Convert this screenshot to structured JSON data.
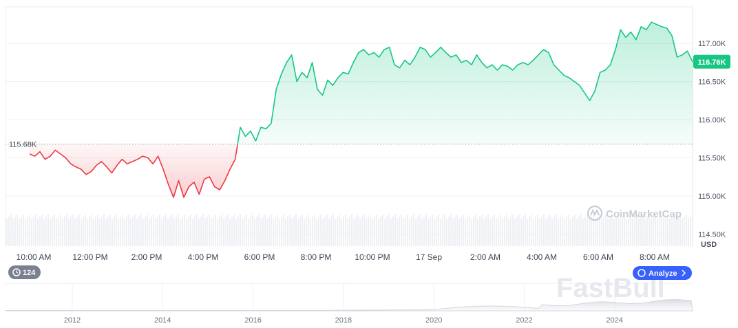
{
  "chart_data": {
    "type": "line",
    "series": [
      {
        "values": [
          115.55,
          115.52,
          115.58,
          115.48,
          115.52,
          115.6,
          115.55,
          115.5,
          115.42,
          115.38,
          115.35,
          115.28,
          115.32,
          115.4,
          115.45,
          115.38,
          115.3,
          115.4,
          115.48,
          115.42,
          115.45,
          115.48,
          115.52,
          115.5,
          115.42,
          115.52,
          115.35,
          115.15,
          114.98,
          115.2,
          114.98,
          115.12,
          115.18,
          115.02,
          115.22,
          115.25,
          115.12,
          115.08,
          115.2,
          115.35,
          115.48,
          115.9,
          115.78,
          115.85,
          115.72,
          115.9,
          115.88,
          115.95,
          116.4,
          116.6,
          116.75,
          116.85,
          116.5,
          116.62,
          116.55,
          116.75,
          116.4,
          116.32,
          116.52,
          116.45,
          116.55,
          116.62,
          116.6,
          116.75,
          116.88,
          116.92,
          116.85,
          116.88,
          116.82,
          116.92,
          116.95,
          116.72,
          116.68,
          116.78,
          116.72,
          116.82,
          116.95,
          116.92,
          116.82,
          116.88,
          116.95,
          116.88,
          116.82,
          116.85,
          116.75,
          116.78,
          116.72,
          116.85,
          116.75,
          116.68,
          116.72,
          116.65,
          116.72,
          116.7,
          116.65,
          116.72,
          116.75,
          116.72,
          116.78,
          116.85,
          116.92,
          116.88,
          116.72,
          116.65,
          116.58,
          116.55,
          116.5,
          116.45,
          116.35,
          116.25,
          116.38,
          116.62,
          116.65,
          116.72,
          116.92,
          117.18,
          117.08,
          117.15,
          117.05,
          117.22,
          117.18,
          117.28,
          117.25,
          117.22,
          117.2,
          117.1,
          116.82,
          116.85,
          116.9,
          116.76
        ],
        "color": "#16c784"
      }
    ],
    "reference_value": 115.68,
    "reference_label": "115.68K",
    "current_label": "116.76K",
    "current_value": 116.76,
    "colors": {
      "up": "#16c784",
      "down": "#ea3943"
    },
    "ylim": [
      114.34,
      117.48
    ],
    "y_ticks": [
      "117.00K",
      "116.50K",
      "116.00K",
      "115.50K",
      "115.00K",
      "114.50K"
    ],
    "y_unit": "USD",
    "x_ticks": [
      "10:00 AM",
      "12:00 PM",
      "2:00 PM",
      "4:00 PM",
      "6:00 PM",
      "8:00 PM",
      "10:00 PM",
      "17 Sep",
      "2:00 AM",
      "4:00 AM",
      "6:00 AM",
      "8:00 AM"
    ],
    "grid": true
  },
  "navigator": {
    "years": [
      "2012",
      "2014",
      "2016",
      "2018",
      "2020",
      "2022",
      "2024"
    ],
    "history_badge": "124",
    "analyze_label": "Analyze"
  },
  "watermark": {
    "text": "CoinMarketCap",
    "brand": "FastBull"
  }
}
